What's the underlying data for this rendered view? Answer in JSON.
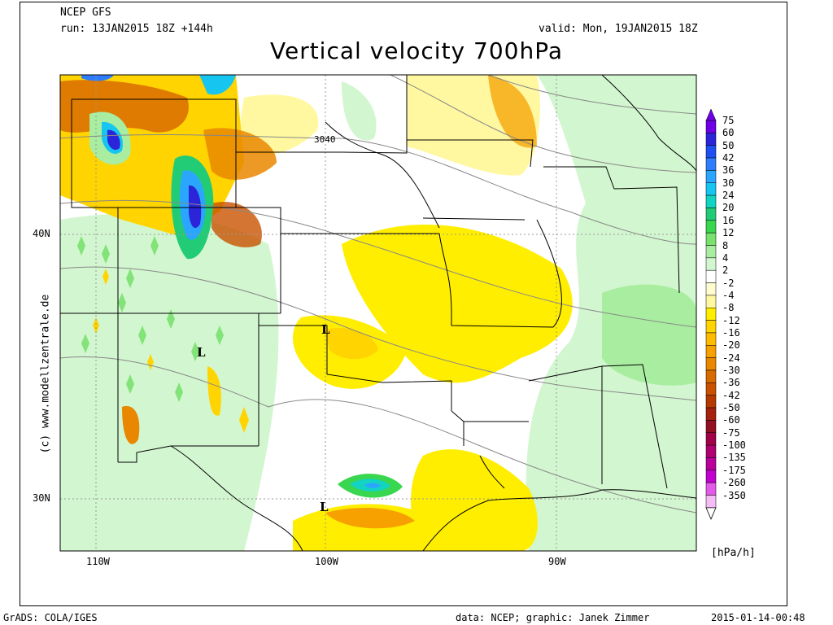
{
  "header": {
    "model": "NCEP GFS",
    "run": "run: 13JAN2015 18Z +144h",
    "valid": "valid: Mon, 19JAN2015 18Z",
    "title": "Vertical velocity 700hPa"
  },
  "map": {
    "lat_labels": [
      "40N",
      "30N"
    ],
    "lon_labels": [
      "110W",
      "100W",
      "90W"
    ],
    "contour_label": "3040",
    "low_markers": [
      "L",
      "L",
      "L"
    ],
    "watermark": "(c) www.modellzentrale.de"
  },
  "colorbar": {
    "unit": "[hPa/h]",
    "levels": [
      "75",
      "60",
      "50",
      "42",
      "36",
      "30",
      "24",
      "20",
      "16",
      "12",
      "8",
      "4",
      "2",
      "-2",
      "-4",
      "-8",
      "-12",
      "-16",
      "-20",
      "-24",
      "-30",
      "-36",
      "-42",
      "-50",
      "-60",
      "-75",
      "-100",
      "-135",
      "-175",
      "-260",
      "-350"
    ],
    "colors": [
      "#6f00e6",
      "#2b24d9",
      "#1f4ff2",
      "#2f7dff",
      "#2aa6ff",
      "#17c6f0",
      "#13d3c3",
      "#22cc77",
      "#39d64f",
      "#79e26f",
      "#a9eda0",
      "#d2f6cf",
      "#ffffff",
      "#fffdd0",
      "#fff8a0",
      "#ffee00",
      "#ffd400",
      "#ffbb00",
      "#f6a100",
      "#e98700",
      "#d86b00",
      "#c95200",
      "#b63a00",
      "#a4220f",
      "#931022",
      "#a3004a",
      "#b0006f",
      "#b9009a",
      "#c200cf",
      "#e35ae8",
      "#f4bdf6"
    ]
  },
  "footer": {
    "left": "GrADS: COLA/IGES",
    "center": "data: NCEP; graphic: Janek Zimmer",
    "right": "2015-01-14-00:48"
  }
}
